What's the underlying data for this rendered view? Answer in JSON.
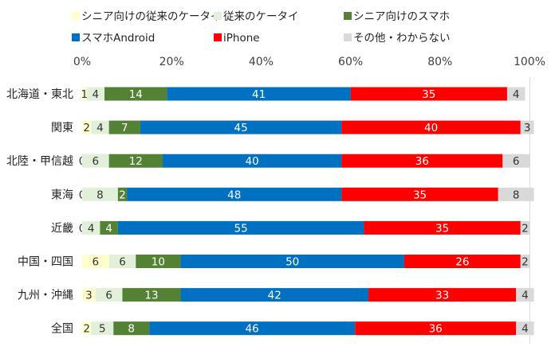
{
  "chart_data": {
    "type": "bar",
    "orientation": "horizontal",
    "stacked": true,
    "percent_stacked": true,
    "xlim": [
      0,
      100
    ],
    "x_ticks": [
      "0%",
      "20%",
      "40%",
      "60%",
      "80%",
      "100%"
    ],
    "legend_position": "top",
    "grid": false,
    "categories": [
      "北海道・東北",
      "関東",
      "北陸・甲信越",
      "東海",
      "近畿",
      "中国・四国",
      "九州・沖縄",
      "全国"
    ],
    "series": [
      {
        "name": "シニア向けの従来のケータイ",
        "color": "#FFFFCC",
        "text_color": "#333333",
        "values": [
          1,
          2,
          0,
          0,
          0,
          6,
          3,
          2
        ]
      },
      {
        "name": "従来のケータイ",
        "color": "#E2F0D9",
        "text_color": "#333333",
        "values": [
          4,
          4,
          6,
          8,
          4,
          6,
          6,
          5
        ]
      },
      {
        "name": "シニア向けのスマホ",
        "color": "#548235",
        "text_color": "#ffffff",
        "values": [
          14,
          7,
          12,
          2,
          4,
          10,
          13,
          8
        ]
      },
      {
        "name": "スマホAndroid",
        "color": "#0070C0",
        "text_color": "#ffffff",
        "values": [
          41,
          45,
          40,
          48,
          55,
          50,
          42,
          46
        ]
      },
      {
        "name": "iPhone",
        "color": "#FF0000",
        "text_color": "#ffffff",
        "values": [
          35,
          40,
          36,
          35,
          35,
          26,
          33,
          36
        ]
      },
      {
        "name": "その他・わからない",
        "color": "#D9D9D9",
        "text_color": "#333333",
        "values": [
          4,
          3,
          6,
          8,
          2,
          2,
          4,
          4
        ]
      }
    ]
  }
}
